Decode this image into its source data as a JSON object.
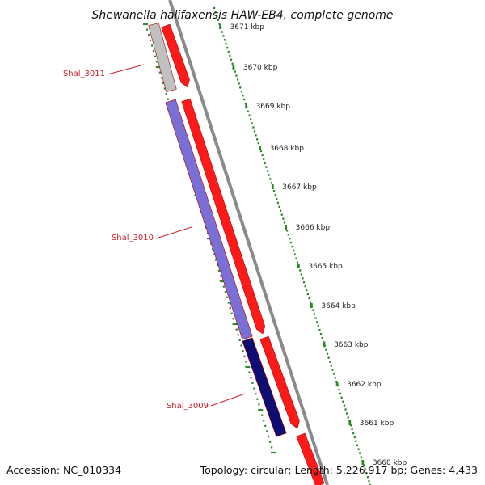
{
  "title": "Shewanella halifaxensis HAW-EB4, complete genome",
  "accession": "Accession: NC_010334",
  "topology_info": "Topology: circular; Length: 5,226,917 bp; Genes: 4,433",
  "ruler": {
    "labels": [
      "3671 kbp",
      "3670 kbp",
      "3669 kbp",
      "3668 kbp",
      "3667 kbp",
      "3666 kbp",
      "3665 kbp",
      "3664 kbp",
      "3663 kbp",
      "3662 kbp",
      "3661 kbp",
      "3660 kbp"
    ]
  },
  "genes": [
    {
      "label": "Shal_3011",
      "color": "#c0c0c0"
    },
    {
      "label": "Shal_3010",
      "color": "#7a6fd6"
    },
    {
      "label": "Shal_3009",
      "color": "#0d0d73"
    }
  ],
  "colors": {
    "cds": "#ff1a1a",
    "backbone": "#8a8a8a",
    "ruler": "#2a8a2a",
    "label": "#c8202a"
  }
}
